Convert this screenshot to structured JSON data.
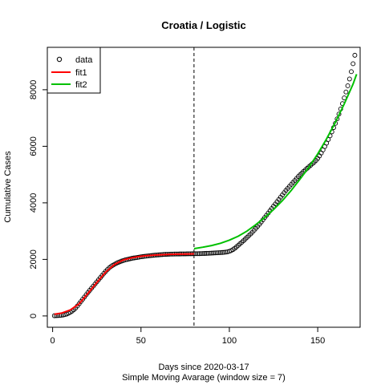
{
  "chart_data": {
    "type": "scatter",
    "title": "Croatia / Logistic",
    "xlabel": "Days since 2020-03-17",
    "subtitle": "Simple Moving Avarage (window size = 7)",
    "ylabel": "Cumulative Cases",
    "xlim": [
      -3,
      174
    ],
    "ylim": [
      -400,
      9500
    ],
    "x_ticks": [
      0,
      50,
      100,
      150
    ],
    "y_ticks": [
      0,
      2000,
      4000,
      6000,
      8000
    ],
    "vline_x": 80,
    "legend": {
      "position": "top-left",
      "entries": [
        "data",
        "fit1",
        "fit2"
      ]
    },
    "colors": {
      "data": "#000000",
      "fit1": "#ff0000",
      "fit2": "#00c000"
    },
    "series": [
      {
        "name": "data",
        "kind": "points",
        "points": [
          [
            1,
            8
          ],
          [
            2,
            10
          ],
          [
            3,
            13
          ],
          [
            4,
            17
          ],
          [
            5,
            23
          ],
          [
            6,
            33
          ],
          [
            7,
            48
          ],
          [
            8,
            68
          ],
          [
            9,
            95
          ],
          [
            10,
            130
          ],
          [
            11,
            170
          ],
          [
            12,
            220
          ],
          [
            13,
            280
          ],
          [
            14,
            350
          ],
          [
            15,
            430
          ],
          [
            16,
            510
          ],
          [
            17,
            590
          ],
          [
            18,
            670
          ],
          [
            19,
            750
          ],
          [
            20,
            830
          ],
          [
            21,
            905
          ],
          [
            22,
            980
          ],
          [
            23,
            1055
          ],
          [
            24,
            1130
          ],
          [
            25,
            1205
          ],
          [
            26,
            1280
          ],
          [
            27,
            1355
          ],
          [
            28,
            1430
          ],
          [
            29,
            1505
          ],
          [
            30,
            1575
          ],
          [
            31,
            1640
          ],
          [
            32,
            1700
          ],
          [
            33,
            1750
          ],
          [
            34,
            1790
          ],
          [
            35,
            1825
          ],
          [
            36,
            1860
          ],
          [
            37,
            1890
          ],
          [
            38,
            1915
          ],
          [
            39,
            1940
          ],
          [
            40,
            1960
          ],
          [
            41,
            1980
          ],
          [
            42,
            1995
          ],
          [
            43,
            2010
          ],
          [
            44,
            2025
          ],
          [
            45,
            2040
          ],
          [
            46,
            2050
          ],
          [
            47,
            2060
          ],
          [
            48,
            2070
          ],
          [
            49,
            2080
          ],
          [
            50,
            2090
          ],
          [
            51,
            2100
          ],
          [
            52,
            2108
          ],
          [
            53,
            2115
          ],
          [
            54,
            2122
          ],
          [
            55,
            2130
          ],
          [
            56,
            2137
          ],
          [
            57,
            2143
          ],
          [
            58,
            2150
          ],
          [
            59,
            2155
          ],
          [
            60,
            2160
          ],
          [
            61,
            2165
          ],
          [
            62,
            2170
          ],
          [
            63,
            2175
          ],
          [
            64,
            2178
          ],
          [
            65,
            2181
          ],
          [
            66,
            2184
          ],
          [
            67,
            2186
          ],
          [
            68,
            2188
          ],
          [
            69,
            2189
          ],
          [
            70,
            2190
          ],
          [
            71,
            2191
          ],
          [
            72,
            2192
          ],
          [
            73,
            2193
          ],
          [
            74,
            2194
          ],
          [
            75,
            2195
          ],
          [
            76,
            2196
          ],
          [
            77,
            2197
          ],
          [
            78,
            2198
          ],
          [
            79,
            2199
          ],
          [
            80,
            2200
          ],
          [
            81,
            2201
          ],
          [
            82,
            2202
          ],
          [
            83,
            2203
          ],
          [
            84,
            2205
          ],
          [
            85,
            2207
          ],
          [
            86,
            2210
          ],
          [
            87,
            2213
          ],
          [
            88,
            2216
          ],
          [
            89,
            2219
          ],
          [
            90,
            2222
          ],
          [
            91,
            2226
          ],
          [
            92,
            2230
          ],
          [
            93,
            2233
          ],
          [
            94,
            2236
          ],
          [
            95,
            2240
          ],
          [
            96,
            2245
          ],
          [
            97,
            2250
          ],
          [
            98,
            2258
          ],
          [
            99,
            2268
          ],
          [
            100,
            2285
          ],
          [
            101,
            2310
          ],
          [
            102,
            2345
          ],
          [
            103,
            2390
          ],
          [
            104,
            2440
          ],
          [
            105,
            2495
          ],
          [
            106,
            2550
          ],
          [
            107,
            2605
          ],
          [
            108,
            2660
          ],
          [
            109,
            2720
          ],
          [
            110,
            2780
          ],
          [
            111,
            2840
          ],
          [
            112,
            2900
          ],
          [
            113,
            2960
          ],
          [
            114,
            3030
          ],
          [
            115,
            3100
          ],
          [
            116,
            3170
          ],
          [
            117,
            3240
          ],
          [
            118,
            3320
          ],
          [
            119,
            3400
          ],
          [
            120,
            3480
          ],
          [
            121,
            3560
          ],
          [
            122,
            3640
          ],
          [
            123,
            3720
          ],
          [
            124,
            3800
          ],
          [
            125,
            3880
          ],
          [
            126,
            3960
          ],
          [
            127,
            4040
          ],
          [
            128,
            4120
          ],
          [
            129,
            4200
          ],
          [
            130,
            4280
          ],
          [
            131,
            4360
          ],
          [
            132,
            4440
          ],
          [
            133,
            4510
          ],
          [
            134,
            4580
          ],
          [
            135,
            4650
          ],
          [
            136,
            4720
          ],
          [
            137,
            4790
          ],
          [
            138,
            4860
          ],
          [
            139,
            4930
          ],
          [
            140,
            4990
          ],
          [
            141,
            5050
          ],
          [
            142,
            5110
          ],
          [
            143,
            5165
          ],
          [
            144,
            5220
          ],
          [
            145,
            5275
          ],
          [
            146,
            5330
          ],
          [
            147,
            5385
          ],
          [
            148,
            5440
          ],
          [
            149,
            5500
          ],
          [
            150,
            5570
          ],
          [
            151,
            5660
          ],
          [
            152,
            5760
          ],
          [
            153,
            5870
          ],
          [
            154,
            5990
          ],
          [
            155,
            6110
          ],
          [
            156,
            6240
          ],
          [
            157,
            6370
          ],
          [
            158,
            6510
          ],
          [
            159,
            6660
          ],
          [
            160,
            6810
          ],
          [
            161,
            6970
          ],
          [
            162,
            7140
          ],
          [
            163,
            7320
          ],
          [
            164,
            7510
          ],
          [
            165,
            7710
          ],
          [
            166,
            7920
          ],
          [
            167,
            8140
          ],
          [
            168,
            8380
          ],
          [
            169,
            8640
          ],
          [
            170,
            8920
          ],
          [
            171,
            9220
          ]
        ]
      },
      {
        "name": "fit1",
        "kind": "line",
        "points": [
          [
            1,
            60
          ],
          [
            5,
            100
          ],
          [
            10,
            210
          ],
          [
            15,
            430
          ],
          [
            20,
            800
          ],
          [
            25,
            1180
          ],
          [
            30,
            1550
          ],
          [
            35,
            1820
          ],
          [
            40,
            1980
          ],
          [
            45,
            2060
          ],
          [
            50,
            2110
          ],
          [
            55,
            2140
          ],
          [
            60,
            2160
          ],
          [
            65,
            2175
          ],
          [
            70,
            2185
          ],
          [
            75,
            2190
          ],
          [
            80,
            2195
          ]
        ]
      },
      {
        "name": "fit2",
        "kind": "line",
        "points": [
          [
            80,
            2380
          ],
          [
            85,
            2430
          ],
          [
            90,
            2490
          ],
          [
            95,
            2570
          ],
          [
            100,
            2680
          ],
          [
            105,
            2820
          ],
          [
            110,
            3000
          ],
          [
            115,
            3230
          ],
          [
            120,
            3480
          ],
          [
            125,
            3760
          ],
          [
            130,
            4080
          ],
          [
            135,
            4440
          ],
          [
            140,
            4840
          ],
          [
            145,
            5260
          ],
          [
            150,
            5730
          ],
          [
            155,
            6260
          ],
          [
            160,
            6850
          ],
          [
            165,
            7500
          ],
          [
            170,
            8200
          ],
          [
            172,
            8550
          ]
        ]
      }
    ]
  }
}
